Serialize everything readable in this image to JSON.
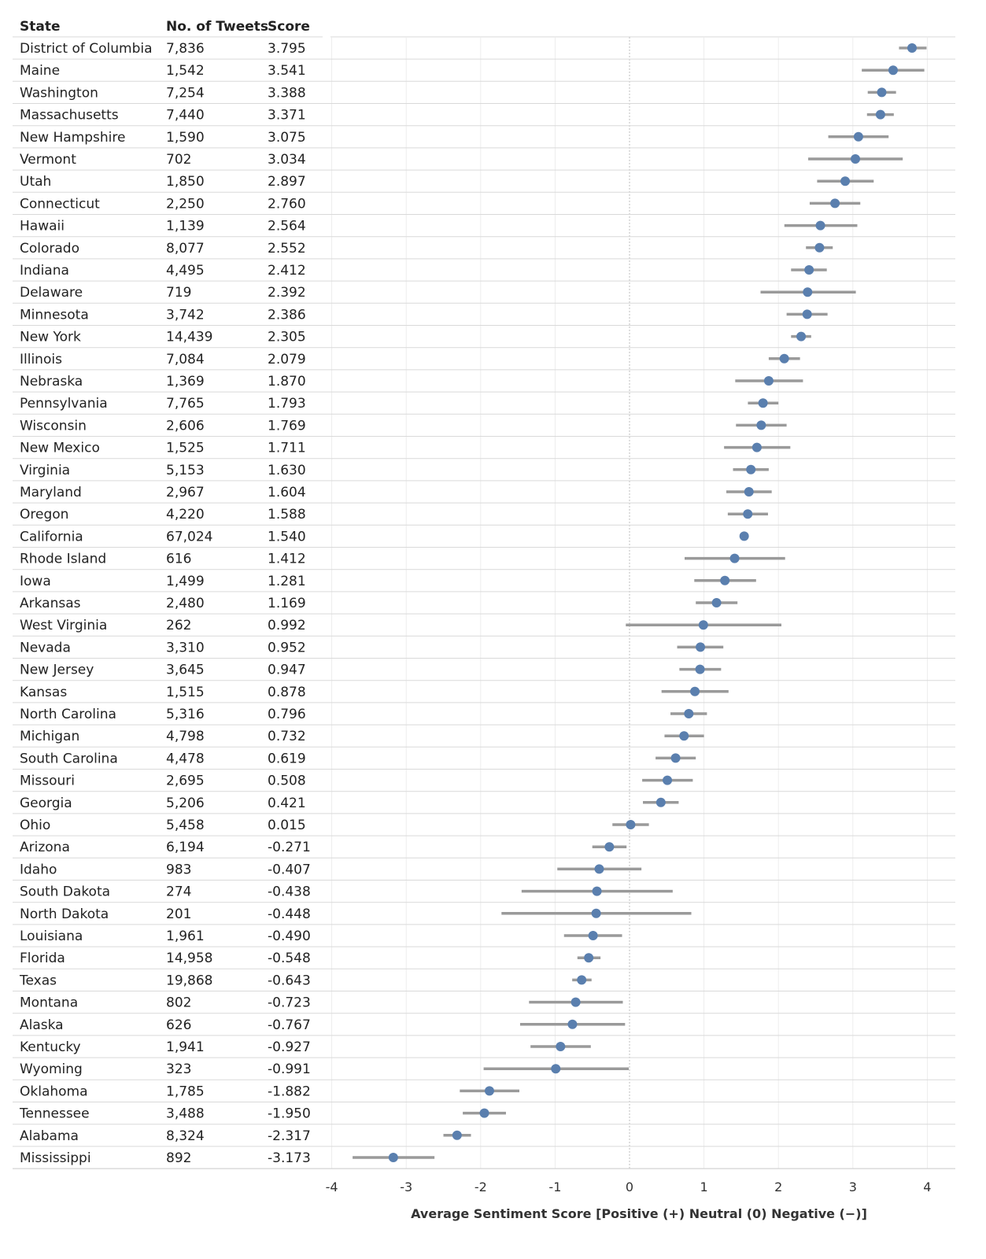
{
  "header": {
    "state": "State",
    "tweets": "No. of Tweets",
    "score": "Score"
  },
  "chart_data": {
    "type": "scatter",
    "subtype": "dot-with-interval",
    "xlabel": "Average Sentiment Score [Positive (+) Neutral (0) Negative (−)]",
    "xlim": [
      -4,
      4
    ],
    "xticks": [
      "-4",
      "-3",
      "-2",
      "-1",
      "0",
      "1",
      "2",
      "3",
      "4"
    ],
    "grid": true,
    "colors": {
      "point": "#5a7fae",
      "interval": "#9a9a9a",
      "row_line": "#d9d9d9",
      "zero_line": "#bbbbbb"
    },
    "rows": [
      {
        "state": "District of Columbia",
        "tweets": "7,836",
        "score": "3.795",
        "value": 3.795,
        "low": 3.62,
        "high": 3.99
      },
      {
        "state": "Maine",
        "tweets": "1,542",
        "score": "3.541",
        "value": 3.541,
        "low": 3.12,
        "high": 3.96
      },
      {
        "state": "Washington",
        "tweets": "7,254",
        "score": "3.388",
        "value": 3.388,
        "low": 3.2,
        "high": 3.58
      },
      {
        "state": "Massachusetts",
        "tweets": "7,440",
        "score": "3.371",
        "value": 3.371,
        "low": 3.19,
        "high": 3.55
      },
      {
        "state": "New Hampshire",
        "tweets": "1,590",
        "score": "3.075",
        "value": 3.075,
        "low": 2.67,
        "high": 3.48
      },
      {
        "state": "Vermont",
        "tweets": "702",
        "score": "3.034",
        "value": 3.034,
        "low": 2.4,
        "high": 3.67
      },
      {
        "state": "Utah",
        "tweets": "1,850",
        "score": "2.897",
        "value": 2.897,
        "low": 2.52,
        "high": 3.28
      },
      {
        "state": "Connecticut",
        "tweets": "2,250",
        "score": "2.760",
        "value": 2.76,
        "low": 2.42,
        "high": 3.1
      },
      {
        "state": "Hawaii",
        "tweets": "1,139",
        "score": "2.564",
        "value": 2.564,
        "low": 2.08,
        "high": 3.06
      },
      {
        "state": "Colorado",
        "tweets": "8,077",
        "score": "2.552",
        "value": 2.552,
        "low": 2.37,
        "high": 2.73
      },
      {
        "state": "Indiana",
        "tweets": "4,495",
        "score": "2.412",
        "value": 2.412,
        "low": 2.17,
        "high": 2.65
      },
      {
        "state": "Delaware",
        "tweets": "719",
        "score": "2.392",
        "value": 2.392,
        "low": 1.76,
        "high": 3.04
      },
      {
        "state": "Minnesota",
        "tweets": "3,742",
        "score": "2.386",
        "value": 2.386,
        "low": 2.11,
        "high": 2.66
      },
      {
        "state": "New York",
        "tweets": "14,439",
        "score": "2.305",
        "value": 2.305,
        "low": 2.17,
        "high": 2.44
      },
      {
        "state": "Illinois",
        "tweets": "7,084",
        "score": "2.079",
        "value": 2.079,
        "low": 1.87,
        "high": 2.29
      },
      {
        "state": "Nebraska",
        "tweets": "1,369",
        "score": "1.870",
        "value": 1.87,
        "low": 1.42,
        "high": 2.33
      },
      {
        "state": "Pennsylvania",
        "tweets": "7,765",
        "score": "1.793",
        "value": 1.793,
        "low": 1.59,
        "high": 2.0
      },
      {
        "state": "Wisconsin",
        "tweets": "2,606",
        "score": "1.769",
        "value": 1.769,
        "low": 1.43,
        "high": 2.11
      },
      {
        "state": "New Mexico",
        "tweets": "1,525",
        "score": "1.711",
        "value": 1.711,
        "low": 1.27,
        "high": 2.16
      },
      {
        "state": "Virginia",
        "tweets": "5,153",
        "score": "1.630",
        "value": 1.63,
        "low": 1.39,
        "high": 1.87
      },
      {
        "state": "Maryland",
        "tweets": "2,967",
        "score": "1.604",
        "value": 1.604,
        "low": 1.3,
        "high": 1.91
      },
      {
        "state": "Oregon",
        "tweets": "4,220",
        "score": "1.588",
        "value": 1.588,
        "low": 1.32,
        "high": 1.86
      },
      {
        "state": "California",
        "tweets": "67,024",
        "score": "1.540",
        "value": 1.54,
        "low": 1.48,
        "high": 1.6
      },
      {
        "state": "Rhode Island",
        "tweets": "616",
        "score": "1.412",
        "value": 1.412,
        "low": 0.74,
        "high": 2.09
      },
      {
        "state": "Iowa",
        "tweets": "1,499",
        "score": "1.281",
        "value": 1.281,
        "low": 0.87,
        "high": 1.7
      },
      {
        "state": "Arkansas",
        "tweets": "2,480",
        "score": "1.169",
        "value": 1.169,
        "low": 0.89,
        "high": 1.45
      },
      {
        "state": "West Virginia",
        "tweets": "262",
        "score": "0.992",
        "value": 0.992,
        "low": -0.05,
        "high": 2.04
      },
      {
        "state": "Nevada",
        "tweets": "3,310",
        "score": "0.952",
        "value": 0.952,
        "low": 0.64,
        "high": 1.26
      },
      {
        "state": "New Jersey",
        "tweets": "3,645",
        "score": "0.947",
        "value": 0.947,
        "low": 0.67,
        "high": 1.23
      },
      {
        "state": "Kansas",
        "tweets": "1,515",
        "score": "0.878",
        "value": 0.878,
        "low": 0.43,
        "high": 1.33
      },
      {
        "state": "North Carolina",
        "tweets": "5,316",
        "score": "0.796",
        "value": 0.796,
        "low": 0.55,
        "high": 1.04
      },
      {
        "state": "Michigan",
        "tweets": "4,798",
        "score": "0.732",
        "value": 0.732,
        "low": 0.47,
        "high": 1.0
      },
      {
        "state": "South Carolina",
        "tweets": "4,478",
        "score": "0.619",
        "value": 0.619,
        "low": 0.35,
        "high": 0.89
      },
      {
        "state": "Missouri",
        "tweets": "2,695",
        "score": "0.508",
        "value": 0.508,
        "low": 0.17,
        "high": 0.85
      },
      {
        "state": "Georgia",
        "tweets": "5,206",
        "score": "0.421",
        "value": 0.421,
        "low": 0.18,
        "high": 0.66
      },
      {
        "state": "Ohio",
        "tweets": "5,458",
        "score": "0.015",
        "value": 0.015,
        "low": -0.23,
        "high": 0.26
      },
      {
        "state": "Arizona",
        "tweets": "6,194",
        "score": "-0.271",
        "value": -0.271,
        "low": -0.5,
        "high": -0.04
      },
      {
        "state": "Idaho",
        "tweets": "983",
        "score": "-0.407",
        "value": -0.407,
        "low": -0.97,
        "high": 0.16
      },
      {
        "state": "South Dakota",
        "tweets": "274",
        "score": "-0.438",
        "value": -0.438,
        "low": -1.45,
        "high": 0.58
      },
      {
        "state": "North Dakota",
        "tweets": "201",
        "score": "-0.448",
        "value": -0.448,
        "low": -1.72,
        "high": 0.83
      },
      {
        "state": "Louisiana",
        "tweets": "1,961",
        "score": "-0.490",
        "value": -0.49,
        "low": -0.88,
        "high": -0.1
      },
      {
        "state": "Florida",
        "tweets": "14,958",
        "score": "-0.548",
        "value": -0.548,
        "low": -0.7,
        "high": -0.39
      },
      {
        "state": "Texas",
        "tweets": "19,868",
        "score": "-0.643",
        "value": -0.643,
        "low": -0.77,
        "high": -0.51
      },
      {
        "state": "Montana",
        "tweets": "802",
        "score": "-0.723",
        "value": -0.723,
        "low": -1.35,
        "high": -0.09
      },
      {
        "state": "Alaska",
        "tweets": "626",
        "score": "-0.767",
        "value": -0.767,
        "low": -1.47,
        "high": -0.06
      },
      {
        "state": "Kentucky",
        "tweets": "1,941",
        "score": "-0.927",
        "value": -0.927,
        "low": -1.33,
        "high": -0.52
      },
      {
        "state": "Wyoming",
        "tweets": "323",
        "score": "-0.991",
        "value": -0.991,
        "low": -1.96,
        "high": -0.01
      },
      {
        "state": "Oklahoma",
        "tweets": "1,785",
        "score": "-1.882",
        "value": -1.882,
        "low": -2.28,
        "high": -1.48
      },
      {
        "state": "Tennessee",
        "tweets": "3,488",
        "score": "-1.950",
        "value": -1.95,
        "low": -2.24,
        "high": -1.66
      },
      {
        "state": "Alabama",
        "tweets": "8,324",
        "score": "-2.317",
        "value": -2.317,
        "low": -2.5,
        "high": -2.13
      },
      {
        "state": "Mississippi",
        "tweets": "892",
        "score": "-3.173",
        "value": -3.173,
        "low": -3.72,
        "high": -2.62
      }
    ]
  }
}
